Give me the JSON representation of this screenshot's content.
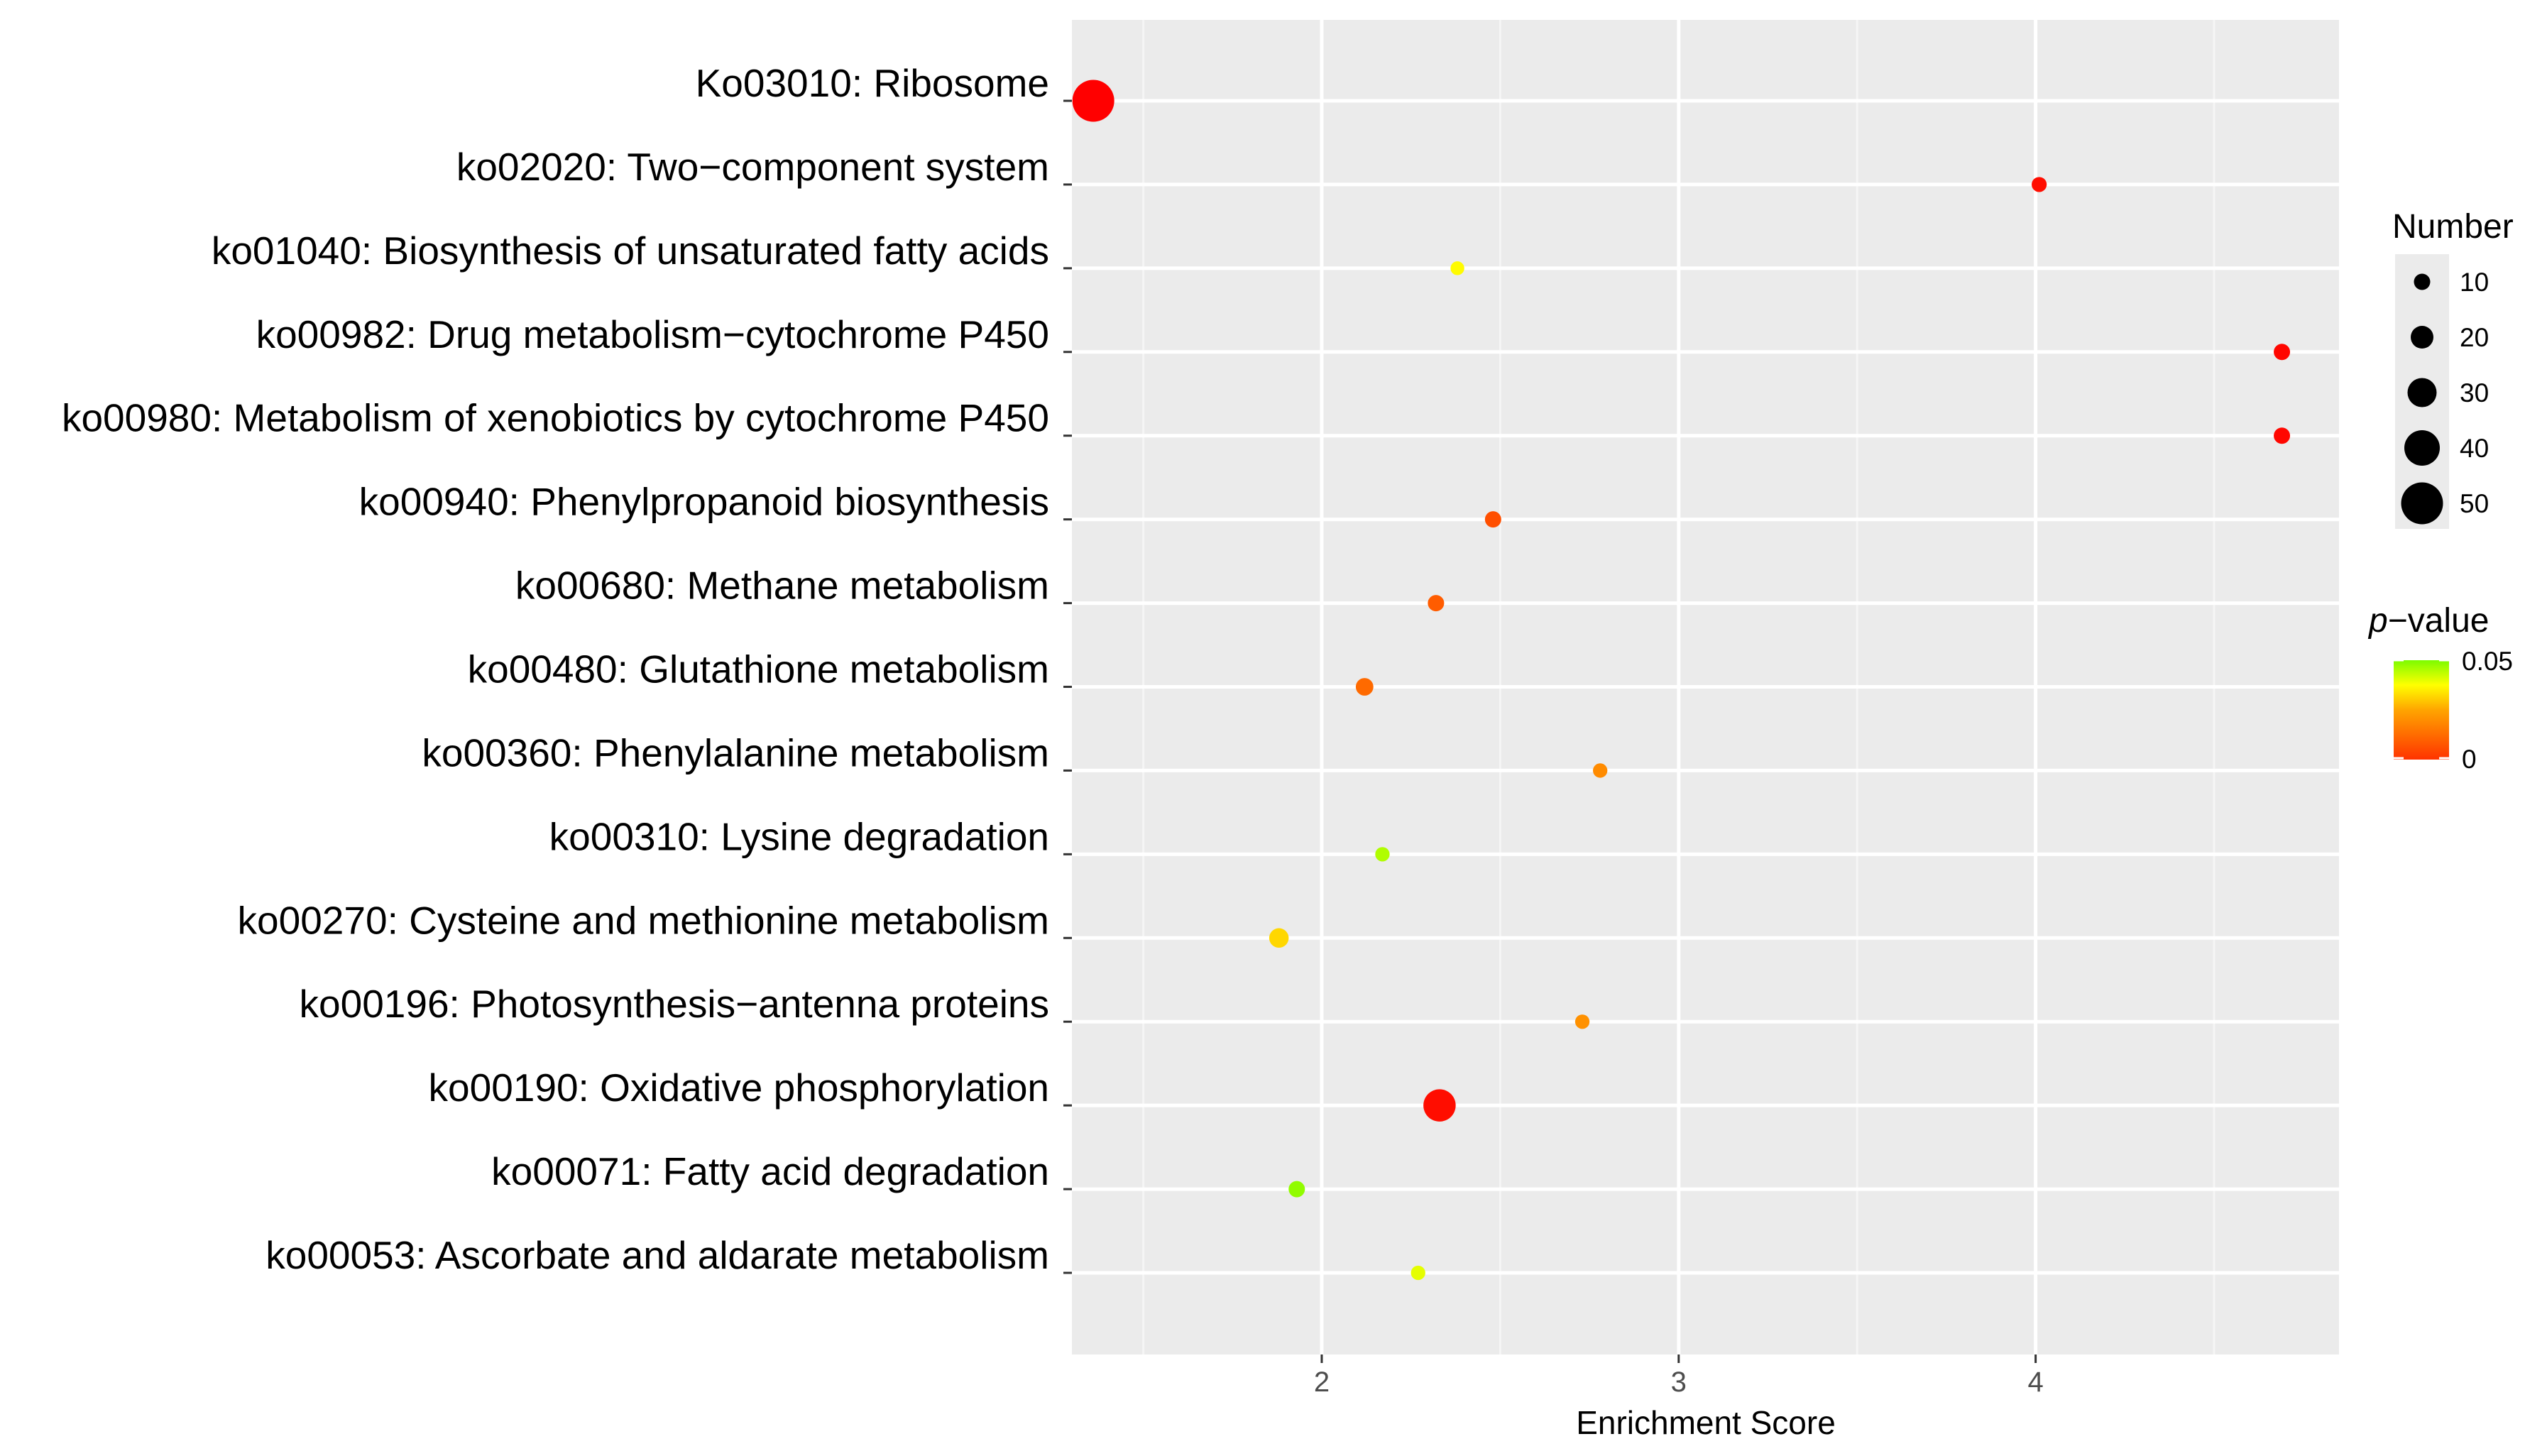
{
  "chart_data": {
    "type": "scatter",
    "title": "",
    "xlabel": "Enrichment Score",
    "ylabel": "",
    "xlim": [
      1.3,
      4.85
    ],
    "xticks": [
      2,
      3,
      4
    ],
    "grid": true,
    "points": [
      {
        "label": "Ko03010: Ribosome",
        "x": 1.36,
        "number": 50,
        "pvalue": 0.0
      },
      {
        "label": "ko02020: Two−component system",
        "x": 4.01,
        "number": 8,
        "pvalue": 0.002
      },
      {
        "label": "ko01040:  Biosynthesis of unsaturated fatty acids",
        "x": 2.38,
        "number": 6,
        "pvalue": 0.037
      },
      {
        "label": "ko00982: Drug metabolism−cytochrome P450",
        "x": 4.69,
        "number": 10,
        "pvalue": 0.001
      },
      {
        "label": "ko00980: Metabolism of xenobiotics by cytochrome P450",
        "x": 4.69,
        "number": 10,
        "pvalue": 0.001
      },
      {
        "label": "ko00940: Phenylpropanoid biosynthesis",
        "x": 2.48,
        "number": 10,
        "pvalue": 0.012
      },
      {
        "label": "ko00680: Methane metabolism",
        "x": 2.32,
        "number": 10,
        "pvalue": 0.014
      },
      {
        "label": "ko00480: Glutathione metabolism",
        "x": 2.12,
        "number": 12,
        "pvalue": 0.016
      },
      {
        "label": "ko00360: Phenylalanine metabolism",
        "x": 2.78,
        "number": 7,
        "pvalue": 0.021
      },
      {
        "label": "ko00310: Lysine degradation",
        "x": 2.17,
        "number": 7,
        "pvalue": 0.045
      },
      {
        "label": "ko00270: Cysteine and methionine metabolism",
        "x": 1.88,
        "number": 15,
        "pvalue": 0.032
      },
      {
        "label": "ko00196: Photosynthesis−antenna proteins",
        "x": 2.73,
        "number": 7,
        "pvalue": 0.022
      },
      {
        "label": "ko00190: Oxidative phosphorylation",
        "x": 2.33,
        "number": 35,
        "pvalue": 0.002
      },
      {
        "label": "ko00071: Fatty acid degradation",
        "x": 1.93,
        "number": 10,
        "pvalue": 0.048
      },
      {
        "label": "ko00053: Ascorbate and aldarate metabolism",
        "x": 2.27,
        "number": 7,
        "pvalue": 0.04
      }
    ],
    "legend": {
      "size_title": "Number",
      "size_values": [
        "10",
        "20",
        "30",
        "40",
        "50"
      ],
      "color_title_italic": "p",
      "color_title_rest": "−value",
      "color_high_label": "0.05",
      "color_low_label": "0",
      "color_high": "#7cfc00",
      "color_mid": "#ffff00",
      "color_low": "#ff0000"
    },
    "colors": {
      "panel_bg": "#ebebeb",
      "grid": "#ffffff"
    }
  }
}
